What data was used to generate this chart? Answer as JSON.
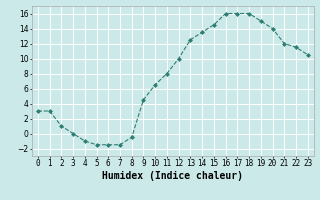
{
  "x": [
    0,
    1,
    2,
    3,
    4,
    5,
    6,
    7,
    8,
    9,
    10,
    11,
    12,
    13,
    14,
    15,
    16,
    17,
    18,
    19,
    20,
    21,
    22,
    23
  ],
  "y": [
    3,
    3,
    1,
    0,
    -1,
    -1.5,
    -1.5,
    -1.5,
    -0.5,
    4.5,
    6.5,
    8,
    10,
    12.5,
    13.5,
    14.5,
    16,
    16,
    16,
    15,
    14,
    12,
    11.5,
    10.5
  ],
  "line_color": "#2e7d72",
  "marker": "D",
  "marker_size": 2.0,
  "bg_color": "#cce9e9",
  "grid_color": "#ffffff",
  "xlabel": "Humidex (Indice chaleur)",
  "xlabel_fontsize": 7,
  "xlim": [
    -0.5,
    23.5
  ],
  "ylim": [
    -3,
    17
  ],
  "yticks": [
    -2,
    0,
    2,
    4,
    6,
    8,
    10,
    12,
    14,
    16
  ],
  "xtick_labels": [
    "0",
    "1",
    "2",
    "3",
    "4",
    "5",
    "6",
    "7",
    "8",
    "9",
    "10",
    "11",
    "12",
    "13",
    "14",
    "15",
    "16",
    "17",
    "18",
    "19",
    "20",
    "21",
    "22",
    "23"
  ],
  "tick_fontsize": 5.5
}
